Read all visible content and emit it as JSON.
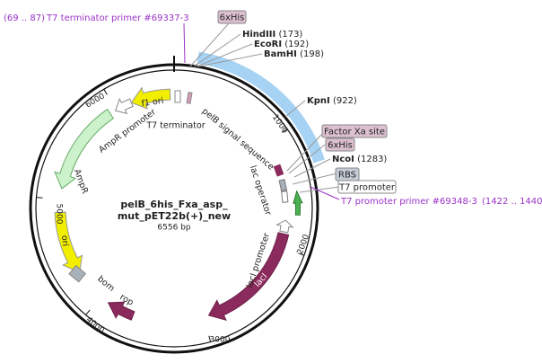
{
  "primers": [
    {
      "range": "(69 .. 87)",
      "name": "T7 terminator primer #69337-3"
    },
    {
      "name": "T7 promoter primer #69348-3",
      "range": "(1422 .. 1440)"
    }
  ],
  "sites": [
    {
      "name": "HindIII",
      "position": "(173)"
    },
    {
      "name": "EcoRI",
      "position": "(192)"
    },
    {
      "name": "BamHI",
      "position": "(198)"
    },
    {
      "name": "KpnI",
      "position": "(922)"
    },
    {
      "name": "NcoI",
      "position": "(1283)"
    }
  ],
  "boxed_labels": [
    "6xHis",
    "Factor Xa site",
    "6xHis",
    "RBS",
    "T7 promoter"
  ],
  "plasmid": {
    "name_line1": "pelB_6his_Fxa_asp_",
    "name_line2": "mut_pET22b(+)_new",
    "length": "6556 bp"
  },
  "ticks": [
    "1000",
    "2000",
    "3000",
    "4000",
    "5000",
    "6000"
  ],
  "features": [
    "f1 ori",
    "AmpR promoter",
    "AmpR",
    "ori",
    "bom",
    "rop",
    "lacI",
    "lacI promoter",
    "lac operator",
    "pelB signal sequence",
    "T7 terminator"
  ]
}
